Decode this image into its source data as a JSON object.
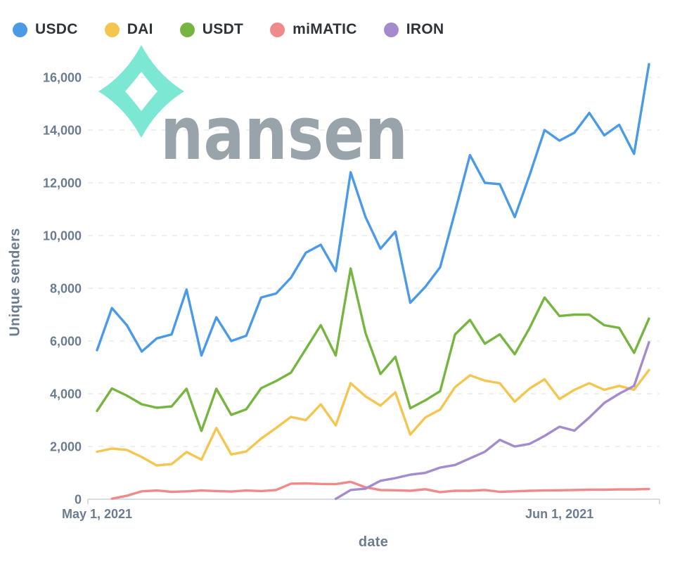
{
  "legend": {
    "items": [
      {
        "label": "USDC",
        "color": "#4B9AE8"
      },
      {
        "label": "DAI",
        "color": "#F5C64F"
      },
      {
        "label": "USDT",
        "color": "#77B541"
      },
      {
        "label": "miMATIC",
        "color": "#F08A8A"
      },
      {
        "label": "IRON",
        "color": "#A48BCC"
      }
    ]
  },
  "watermark": {
    "text": "nansen",
    "text_color": "#99A3AA",
    "icon_color": "#7CE8D4"
  },
  "chart_data": {
    "type": "line",
    "title": "",
    "xlabel": "date",
    "ylabel": "Unique senders",
    "grid": "horizontal-dashed",
    "legend_position": "top-left",
    "ylim": [
      0,
      16600
    ],
    "yticks": [
      0,
      2000,
      4000,
      6000,
      8000,
      10000,
      12000,
      14000,
      16000
    ],
    "ytick_labels": [
      "0",
      "2,000",
      "4,000",
      "6,000",
      "8,000",
      "10,000",
      "12,000",
      "14,000",
      "16,000"
    ],
    "xticks": [
      {
        "index": 0,
        "label": "May 1, 2021"
      },
      {
        "index": 31,
        "label": "Jun 1, 2021"
      }
    ],
    "x": [
      "May 1, 2021",
      "May 2, 2021",
      "May 3, 2021",
      "May 4, 2021",
      "May 5, 2021",
      "May 6, 2021",
      "May 7, 2021",
      "May 8, 2021",
      "May 9, 2021",
      "May 10, 2021",
      "May 11, 2021",
      "May 12, 2021",
      "May 13, 2021",
      "May 14, 2021",
      "May 15, 2021",
      "May 16, 2021",
      "May 17, 2021",
      "May 18, 2021",
      "May 19, 2021",
      "May 20, 2021",
      "May 21, 2021",
      "May 22, 2021",
      "May 23, 2021",
      "May 24, 2021",
      "May 25, 2021",
      "May 26, 2021",
      "May 27, 2021",
      "May 28, 2021",
      "May 29, 2021",
      "May 30, 2021",
      "May 31, 2021",
      "Jun 1, 2021",
      "Jun 2, 2021",
      "Jun 3, 2021",
      "Jun 4, 2021",
      "Jun 5, 2021",
      "Jun 6, 2021",
      "Jun 7, 2021"
    ],
    "series": [
      {
        "name": "USDC",
        "color": "#4B9AE8",
        "values": [
          5650,
          7250,
          6600,
          5600,
          6100,
          6250,
          7950,
          5450,
          6900,
          6000,
          6200,
          7650,
          7800,
          8400,
          9350,
          9650,
          8650,
          12400,
          10700,
          9500,
          10150,
          7450,
          8050,
          8800,
          10900,
          13050,
          12000,
          11950,
          10700,
          12300,
          14000,
          13600,
          13900,
          14650,
          13800,
          14200,
          13100,
          16500
        ]
      },
      {
        "name": "DAI",
        "color": "#F5C64F",
        "values": [
          1800,
          1920,
          1870,
          1600,
          1280,
          1330,
          1790,
          1500,
          2700,
          1700,
          1810,
          2300,
          2700,
          3120,
          3000,
          3600,
          2800,
          4400,
          3900,
          3550,
          4050,
          2450,
          3100,
          3400,
          4250,
          4700,
          4500,
          4400,
          3700,
          4200,
          4550,
          3800,
          4150,
          4400,
          4150,
          4300,
          4150,
          4900
        ]
      },
      {
        "name": "USDT",
        "color": "#77B541",
        "values": [
          3350,
          4200,
          3930,
          3600,
          3470,
          3520,
          4190,
          2590,
          4190,
          3200,
          3410,
          4210,
          4480,
          4800,
          5700,
          6600,
          5450,
          8750,
          6300,
          4750,
          5400,
          3450,
          3750,
          4100,
          6250,
          6800,
          5900,
          6250,
          5500,
          6500,
          7650,
          6950,
          7000,
          7000,
          6600,
          6500,
          5550,
          6850
        ]
      },
      {
        "name": "miMATIC",
        "color": "#F08A8A",
        "values": [
          null,
          20,
          130,
          300,
          330,
          280,
          300,
          330,
          310,
          290,
          330,
          310,
          350,
          590,
          600,
          580,
          570,
          660,
          450,
          350,
          340,
          320,
          380,
          270,
          320,
          320,
          350,
          280,
          300,
          320,
          330,
          340,
          350,
          360,
          360,
          370,
          370,
          390
        ]
      },
      {
        "name": "IRON",
        "color": "#A48BCC",
        "values": [
          null,
          null,
          null,
          null,
          null,
          null,
          null,
          null,
          null,
          null,
          null,
          null,
          null,
          null,
          null,
          null,
          10,
          350,
          400,
          700,
          800,
          930,
          1000,
          1200,
          1300,
          1550,
          1800,
          2250,
          2000,
          2100,
          2400,
          2750,
          2600,
          3100,
          3650,
          4000,
          4300,
          5950
        ]
      }
    ]
  }
}
